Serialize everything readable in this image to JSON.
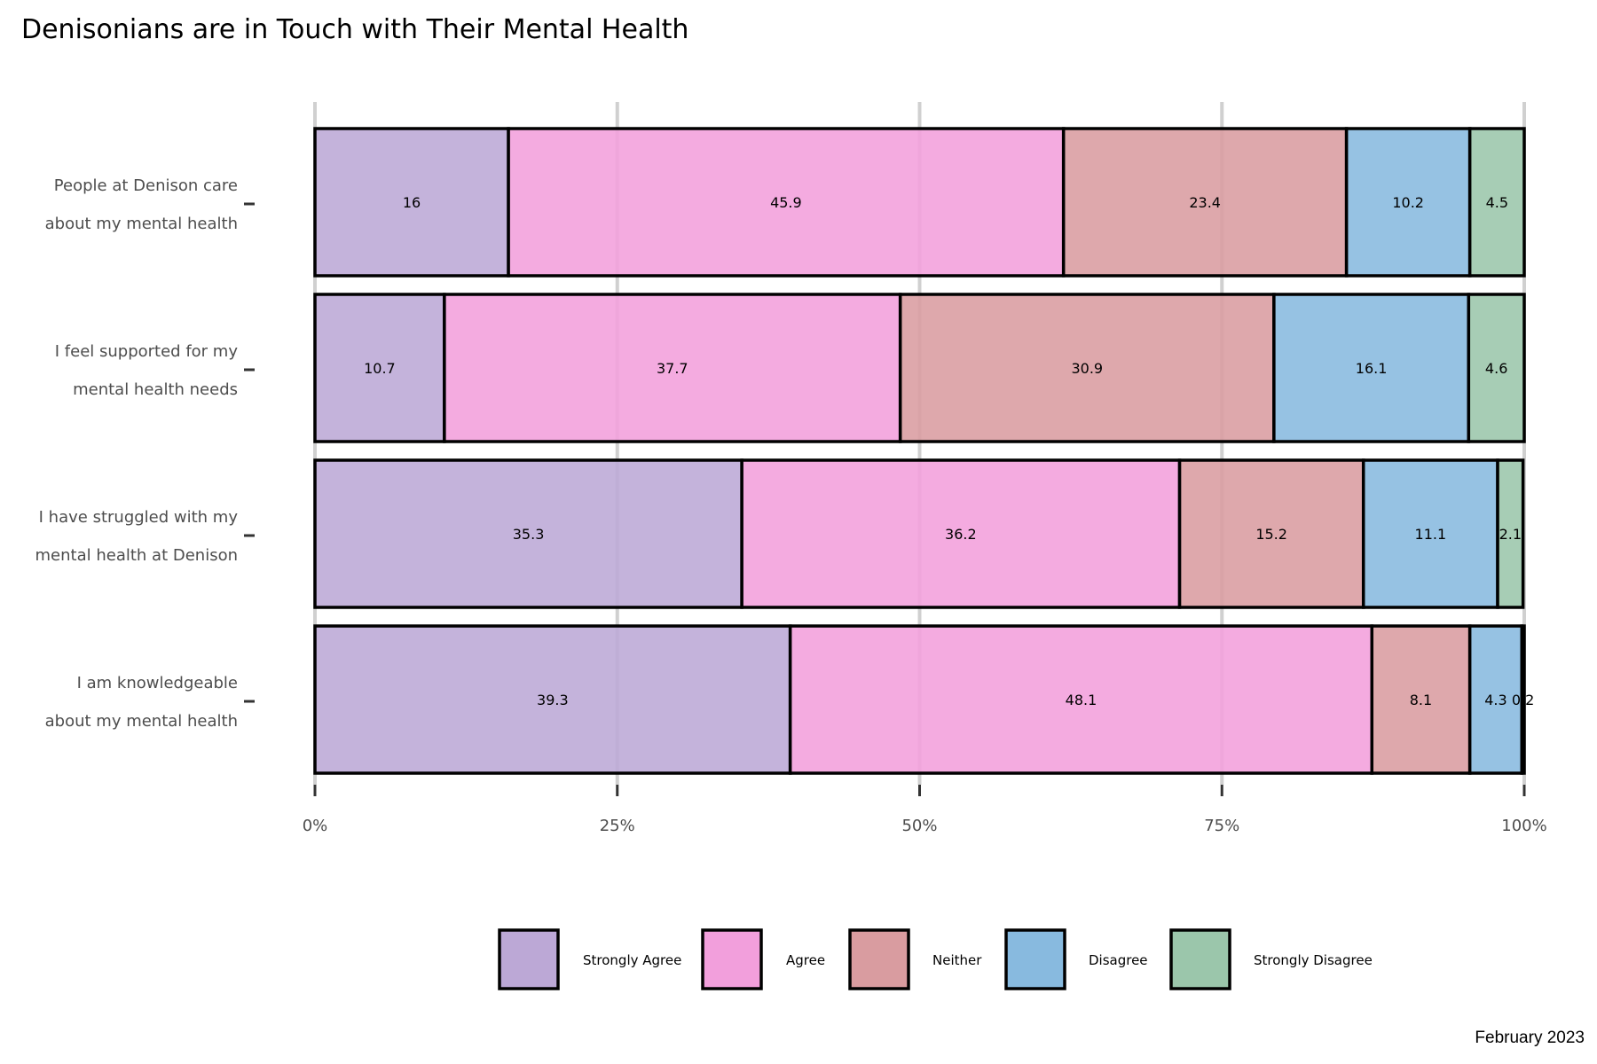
{
  "chart_data": {
    "type": "bar",
    "orientation": "horizontal",
    "stacked": "percent",
    "title": "Denisonians are in Touch with Their Mental Health",
    "caption": "February 2023",
    "categories": [
      [
        "People at Denison care",
        "about my mental health"
      ],
      [
        "I feel supported for my",
        "mental health needs"
      ],
      [
        "I have struggled with my",
        "mental health at Denison"
      ],
      [
        "I am knowledgeable",
        "about my mental health"
      ]
    ],
    "series": [
      {
        "name": "Strongly Agree",
        "color": "#bca8d6",
        "values": [
          16,
          10.7,
          35.3,
          39.3
        ]
      },
      {
        "name": "Agree",
        "color": "#f29fdc",
        "values": [
          45.9,
          37.7,
          36.2,
          48.1
        ]
      },
      {
        "name": "Neither",
        "color": "#d99ca0",
        "values": [
          23.4,
          30.9,
          15.2,
          8.1
        ]
      },
      {
        "name": "Disagree",
        "color": "#88badf",
        "values": [
          10.2,
          16.1,
          11.1,
          4.3
        ]
      },
      {
        "name": "Strongly Disagree",
        "color": "#9bc6ab",
        "values": [
          4.5,
          4.6,
          2.1,
          0.2
        ]
      }
    ],
    "x_ticks": [
      "0%",
      "25%",
      "50%",
      "75%",
      "100%"
    ],
    "xlim": [
      0,
      100
    ],
    "grid": true,
    "legend_position": "bottom"
  }
}
